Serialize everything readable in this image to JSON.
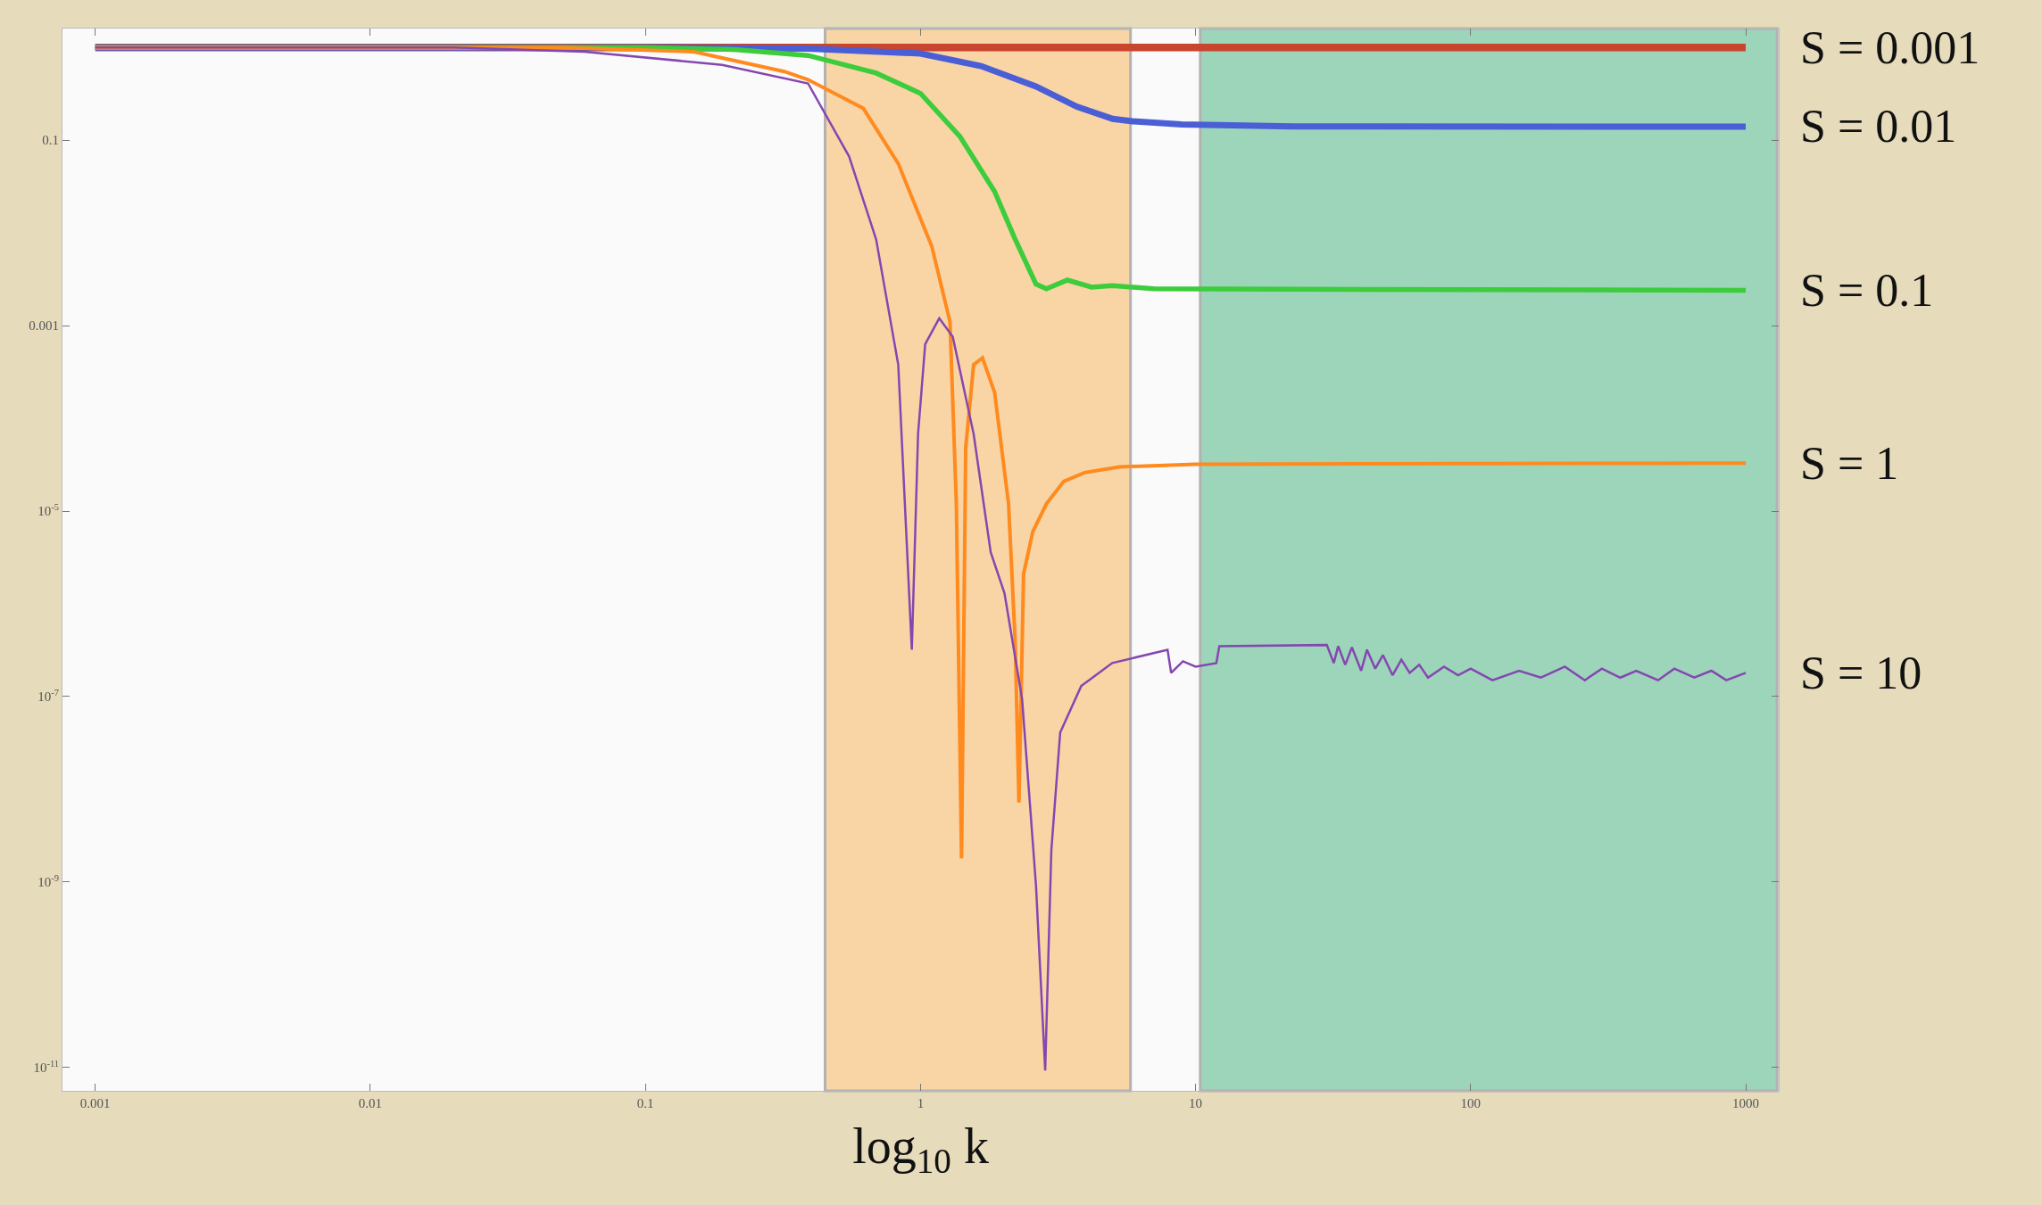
{
  "chart_data": {
    "type": "line",
    "xlabel": "log$_{10}$ k",
    "log": "xy",
    "xlim": [
      0.00076,
      1318
    ],
    "ylim": [
      5.6e-12,
      1.6
    ],
    "xticks": [
      0.001,
      0.01,
      0.1,
      1,
      10,
      100,
      1000
    ],
    "yticks": [
      0.1,
      0.001,
      {
        "value": 1e-05,
        "label": "10$^{-5}$"
      },
      {
        "value": 1e-07,
        "label": "10$^{-7}$"
      },
      {
        "value": 1e-09,
        "label": "10$^{-9}$"
      },
      {
        "value": 1e-11,
        "label": "10$^{-11}$"
      }
    ],
    "grid": false,
    "line_style": "solid",
    "marker": "none",
    "bands": [
      {
        "axis": "x",
        "from": 0.45,
        "to": 5.8,
        "color": "#f9c98a"
      },
      {
        "axis": "x",
        "from": 10.4,
        "to": 1300,
        "color": "#7fc9a7"
      }
    ],
    "series": [
      {
        "name": "S = 0.001",
        "color": "#c8452e",
        "x": [
          0.001,
          1,
          10,
          1000
        ],
        "values": [
          1,
          1,
          1,
          1
        ]
      },
      {
        "name": "S = 0.01",
        "color": "#4a5fd6",
        "x": [
          0.001,
          0.1,
          0.39,
          1,
          1.66,
          2.63,
          3.7,
          5,
          5.9,
          8.9,
          22.6,
          1000
        ],
        "values": [
          1,
          1,
          0.97,
          0.86,
          0.63,
          0.38,
          0.23,
          0.17,
          0.16,
          0.148,
          0.141,
          0.14
        ]
      },
      {
        "name": "S = 0.1",
        "color": "#3ccc3c",
        "x": [
          0.001,
          0.1,
          0.21,
          0.39,
          0.69,
          1,
          1.39,
          1.86,
          2.21,
          2.63,
          2.87,
          3.42,
          4.19,
          4.98,
          7.06,
          1000
        ],
        "values": [
          1,
          1,
          0.95,
          0.82,
          0.53,
          0.32,
          0.11,
          0.028,
          0.0085,
          0.0028,
          0.0025,
          0.0031,
          0.0026,
          0.0027,
          0.0025,
          0.0024
        ]
      },
      {
        "name": "S = 1",
        "color": "#ff8a1e",
        "x": [
          0.001,
          0.05,
          0.15,
          0.32,
          0.39,
          0.62,
          0.83,
          1.1,
          1.28,
          1.35,
          1.41,
          1.46,
          1.56,
          1.68,
          1.86,
          2.09,
          2.21,
          2.28,
          2.37,
          2.56,
          2.87,
          3.32,
          3.95,
          5.28,
          10,
          1000
        ],
        "values": [
          1,
          1,
          0.9,
          0.55,
          0.45,
          0.22,
          0.056,
          0.0071,
          0.0011,
          1.2e-05,
          1.8e-09,
          4.8e-05,
          0.00038,
          0.00045,
          0.00019,
          1.2e-05,
          3.8e-07,
          7.2e-09,
          2.1e-06,
          6e-06,
          1.2e-05,
          2.1e-05,
          2.6e-05,
          3e-05,
          3.2e-05,
          3.3e-05
        ]
      },
      {
        "name": "S = 10",
        "color": "#8447b0",
        "x": [
          0.001,
          0.02,
          0.06,
          0.19,
          0.39,
          0.55,
          0.69,
          0.83,
          0.93,
          0.98,
          1.04,
          1.17,
          1.31,
          1.56,
          1.8,
          2.02,
          2.34,
          2.63,
          2.84,
          2.99,
          3.22,
          3.84,
          4.98,
          7.91,
          8.15,
          9,
          10,
          11.9,
          12.2,
          30,
          31.8,
          33,
          35,
          37,
          40,
          42,
          45,
          48,
          52,
          56,
          60,
          65,
          70,
          80,
          90,
          100,
          120,
          150,
          180,
          220,
          260,
          300,
          350,
          400,
          480,
          550,
          650,
          750,
          850,
          1000
        ],
        "values": [
          1,
          1,
          0.9,
          0.65,
          0.41,
          0.067,
          0.0085,
          0.00038,
          3.2e-07,
          6.8e-05,
          0.00063,
          0.0012,
          0.00076,
          6.8e-05,
          3.6e-06,
          1.3e-06,
          9.5e-08,
          9.1e-10,
          9.3e-12,
          2.2e-09,
          4.1e-08,
          1.3e-07,
          2.3e-07,
          3.2e-07,
          1.8e-07,
          2.4e-07,
          2.1e-07,
          2.3e-07,
          3.5e-07,
          3.6e-07,
          2.3e-07,
          3.5e-07,
          2.2e-07,
          3.4e-07,
          1.9e-07,
          3.2e-07,
          2e-07,
          2.8e-07,
          1.7e-07,
          2.5e-07,
          1.8e-07,
          2.2e-07,
          1.6e-07,
          2.1e-07,
          1.7e-07,
          2e-07,
          1.5e-07,
          1.9e-07,
          1.6e-07,
          2.1e-07,
          1.5e-07,
          2e-07,
          1.6e-07,
          1.9e-07,
          1.5e-07,
          2e-07,
          1.6e-07,
          1.9e-07,
          1.5e-07,
          1.8e-07
        ]
      }
    ]
  }
}
